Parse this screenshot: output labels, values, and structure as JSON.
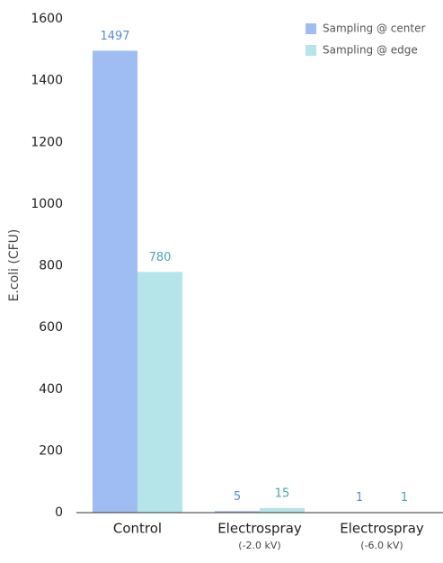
{
  "chart_data": {
    "type": "bar",
    "y_label": "E.coli (CFU)",
    "categories": [
      "Control",
      "Electrospray",
      "Electrospray"
    ],
    "category_sublabels": [
      null,
      "(-2.0 kV)",
      "(-6.0 kV)"
    ],
    "series": [
      {
        "name": "Sampling @ center",
        "color": "#a0bdf3",
        "label_color": "#5b8bd6",
        "values": [
          1497,
          5,
          1
        ]
      },
      {
        "name": "Sampling @ edge",
        "color": "#b5e5e8",
        "label_color": "#4aa5ad",
        "values": [
          780,
          15,
          1
        ]
      }
    ],
    "ylim": [
      0,
      1600
    ],
    "yticks": [
      0,
      200,
      400,
      600,
      800,
      1000,
      1200,
      1400,
      1600
    ],
    "legend": "top-right",
    "grid": false
  }
}
